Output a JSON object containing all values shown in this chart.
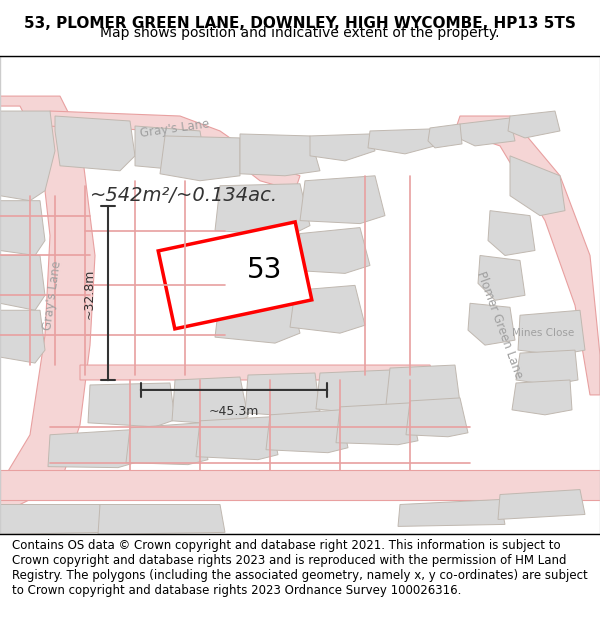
{
  "title": "53, PLOMER GREEN LANE, DOWNLEY, HIGH WYCOMBE, HP13 5TS",
  "subtitle": "Map shows position and indicative extent of the property.",
  "footer": "Contains OS data © Crown copyright and database right 2021. This information is subject to Crown copyright and database rights 2023 and is reproduced with the permission of HM Land Registry. The polygons (including the associated geometry, namely x, y co-ordinates) are subject to Crown copyright and database rights 2023 Ordnance Survey 100026316.",
  "area_text": "~542m²/~0.134ac.",
  "property_number": "53",
  "dim_width": "~45.3m",
  "dim_height": "~32.8m",
  "bg_color": "#f5f5f5",
  "map_bg": "#f0eeeb",
  "title_fontsize": 11,
  "subtitle_fontsize": 10,
  "footer_fontsize": 8.5,
  "road_color": "#e8a0a0",
  "road_fill": "#f5d5d5",
  "block_color": "#d8d8d8",
  "block_outline": "#c0b8b0",
  "property_fill": "white",
  "property_outline": "red",
  "property_lw": 2.5,
  "dim_color": "#333333",
  "area_text_color": "#333333",
  "road_label_color": "#a0a0a0",
  "grays_lane_label": "Gray's Lane",
  "plomer_green_lane_label": "Plomer Green Lane",
  "mines_close_label": "Mines Close"
}
